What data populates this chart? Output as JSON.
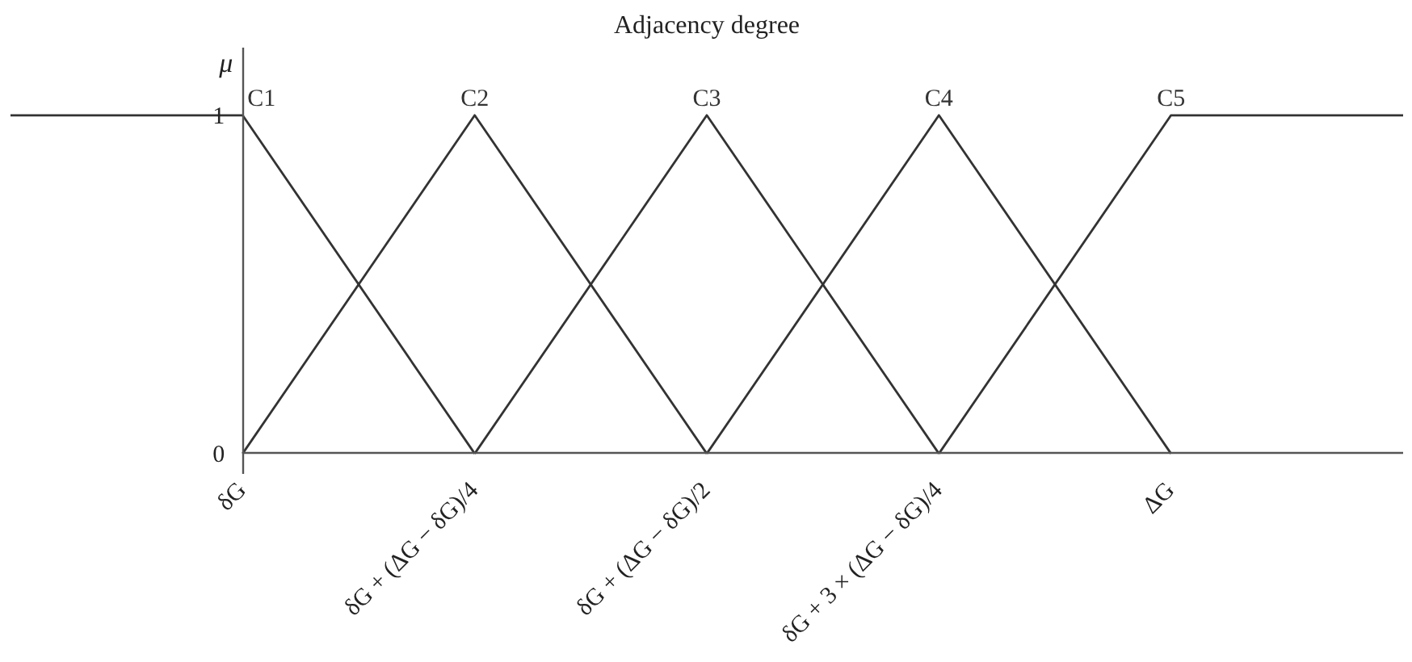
{
  "chart_data": {
    "type": "line",
    "title": "Adjacency degree",
    "ylabel": "μ",
    "categories": [
      null,
      "δG",
      "δG + (ΔG − δG)/4",
      "δG + (ΔG − δG)/2",
      "δG + 3 × (ΔG − δG)/4",
      "ΔG",
      null
    ],
    "series": [
      {
        "name": "C1",
        "color": "#333333",
        "values": [
          1,
          1,
          0,
          null,
          null,
          null,
          null
        ]
      },
      {
        "name": "C2",
        "color": "#333333",
        "values": [
          null,
          0,
          1,
          0,
          null,
          null,
          null
        ]
      },
      {
        "name": "C3",
        "color": "#333333",
        "values": [
          null,
          null,
          0,
          1,
          0,
          null,
          null
        ]
      },
      {
        "name": "C4",
        "color": "#333333",
        "values": [
          null,
          null,
          null,
          0,
          1,
          0,
          null
        ]
      },
      {
        "name": "C5",
        "color": "#333333",
        "values": [
          null,
          null,
          null,
          null,
          0,
          1,
          1
        ]
      }
    ],
    "ylim": [
      -0.06,
      1.2
    ],
    "yticks": [
      0,
      1
    ],
    "line_style": "solid"
  }
}
